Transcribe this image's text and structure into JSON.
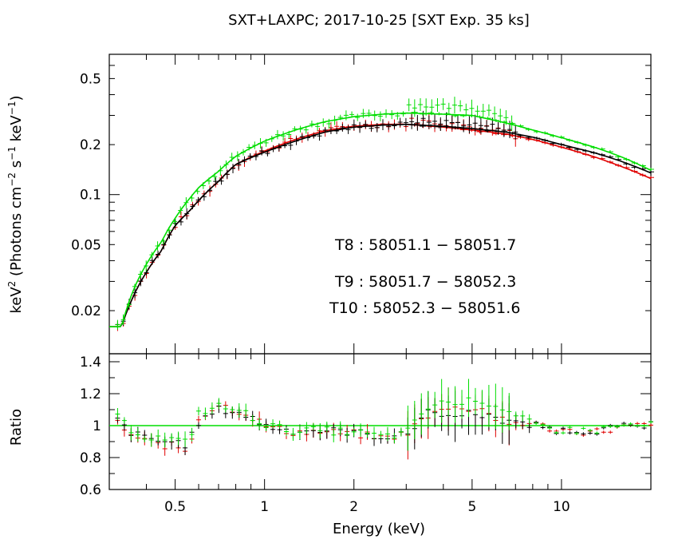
{
  "chart_data": {
    "type": "scatter",
    "title": "SXT+LAXPC; 2017-10-25 [SXT Exp. 35 ks]",
    "xlabel": "Energy (keV)",
    "x_scale": "log",
    "xlim": [
      0.3,
      20
    ],
    "x_ticks": [
      {
        "v": 0.5,
        "label": "0.5"
      },
      {
        "v": 1,
        "label": "1"
      },
      {
        "v": 2,
        "label": "2"
      },
      {
        "v": 5,
        "label": "5"
      },
      {
        "v": 10,
        "label": "10"
      }
    ],
    "colors": {
      "T8": "#000000",
      "T9": "#e00000",
      "T10": "#00dd00"
    },
    "top_panel": {
      "ylabel_parts": {
        "a": "keV",
        "b": "2",
        "c": " (Photons cm",
        "d": "−2",
        "e": " s",
        "f": "−1",
        "g": " keV",
        "h": "−1",
        "i": ")"
      },
      "y_scale": "log",
      "ylim": [
        0.011,
        0.7
      ],
      "y_ticks": [
        {
          "v": 0.02,
          "label": "0.02"
        },
        {
          "v": 0.05,
          "label": "0.05"
        },
        {
          "v": 0.1,
          "label": "0.1"
        },
        {
          "v": 0.2,
          "label": "0.2"
        },
        {
          "v": 0.5,
          "label": "0.5"
        }
      ],
      "legend_position": "center-right",
      "series": [
        {
          "name": "T8",
          "label": "T8 : 58051.1 − 58051.7",
          "color": "#000000",
          "energy": [
            0.33,
            0.36,
            0.4,
            0.45,
            0.5,
            0.56,
            0.6,
            0.7,
            0.8,
            1.0,
            1.3,
            1.6,
            2.0,
            2.5,
            3.0,
            4.0,
            5.0,
            6.5,
            8,
            10,
            13,
            16,
            20
          ],
          "flux": [
            0.016,
            0.024,
            0.034,
            0.046,
            0.065,
            0.08,
            0.092,
            0.12,
            0.152,
            0.18,
            0.213,
            0.238,
            0.255,
            0.262,
            0.265,
            0.258,
            0.25,
            0.238,
            0.222,
            0.2,
            0.178,
            0.158,
            0.135
          ]
        },
        {
          "name": "T9",
          "label": "T9 : 58051.7 − 58052.3",
          "color": "#e00000",
          "energy": [
            0.33,
            0.36,
            0.4,
            0.45,
            0.5,
            0.56,
            0.6,
            0.7,
            0.8,
            1.0,
            1.3,
            1.6,
            2.0,
            2.5,
            3.0,
            4.0,
            5.0,
            6.5,
            8,
            10,
            13,
            16,
            20
          ],
          "flux": [
            0.016,
            0.024,
            0.034,
            0.046,
            0.065,
            0.08,
            0.092,
            0.12,
            0.152,
            0.183,
            0.218,
            0.243,
            0.258,
            0.265,
            0.265,
            0.255,
            0.245,
            0.232,
            0.215,
            0.193,
            0.168,
            0.147,
            0.125
          ]
        },
        {
          "name": "T10",
          "label": "T10 : 58052.3 − 58051.6",
          "color": "#00dd00",
          "energy": [
            0.33,
            0.36,
            0.4,
            0.45,
            0.5,
            0.56,
            0.6,
            0.7,
            0.8,
            1.0,
            1.3,
            1.6,
            2.0,
            2.5,
            3.0,
            4.0,
            5.0,
            6.5,
            8,
            10,
            13,
            16,
            20
          ],
          "flux": [
            0.016,
            0.026,
            0.038,
            0.052,
            0.072,
            0.095,
            0.11,
            0.138,
            0.17,
            0.21,
            0.248,
            0.275,
            0.295,
            0.305,
            0.31,
            0.305,
            0.3,
            0.27,
            0.245,
            0.22,
            0.192,
            0.168,
            0.14
          ]
        }
      ]
    },
    "bottom_panel": {
      "ylabel": "Ratio",
      "ylim": [
        0.6,
        1.45
      ],
      "y_ticks": [
        {
          "v": 0.6,
          "label": "0.6"
        },
        {
          "v": 0.8,
          "label": "0.8"
        },
        {
          "v": 1,
          "label": "1"
        },
        {
          "v": 1.2,
          "label": "1.2"
        },
        {
          "v": 1.4,
          "label": "1.4"
        }
      ],
      "reference_line": 1.0,
      "energy": [
        0.32,
        0.36,
        0.4,
        0.45,
        0.5,
        0.55,
        0.6,
        0.7,
        0.8,
        0.9,
        1.0,
        1.2,
        1.5,
        2.0,
        2.5,
        3.0,
        3.5,
        4.0,
        4.5,
        5.0,
        5.5,
        6.0,
        6.5,
        8,
        10,
        13,
        16,
        20
      ],
      "ratios": {
        "T8": [
          1.03,
          0.95,
          0.92,
          0.9,
          0.9,
          0.88,
          1.02,
          1.1,
          1.09,
          1.05,
          1.0,
          0.97,
          0.97,
          0.96,
          0.93,
          0.94,
          1.08,
          1.05,
          1.06,
          1.08,
          1.06,
          1.04,
          1.02,
          1.0,
          0.97,
          0.97,
          0.99,
          1.0
        ],
        "T9": [
          1.02,
          0.93,
          0.9,
          0.88,
          0.87,
          0.84,
          1.05,
          1.13,
          1.1,
          1.06,
          1.0,
          0.96,
          0.96,
          0.95,
          0.92,
          0.95,
          1.06,
          1.1,
          1.12,
          1.1,
          1.08,
          1.05,
          1.03,
          1.01,
          0.97,
          0.96,
          0.99,
          1.0
        ],
        "T10": [
          1.05,
          0.97,
          0.93,
          0.92,
          0.91,
          0.89,
          1.08,
          1.12,
          1.1,
          1.06,
          1.01,
          0.97,
          0.97,
          0.96,
          0.93,
          0.95,
          1.12,
          1.14,
          1.15,
          1.18,
          1.15,
          1.12,
          1.08,
          1.01,
          0.97,
          0.97,
          1.0,
          1.0
        ]
      }
    }
  }
}
